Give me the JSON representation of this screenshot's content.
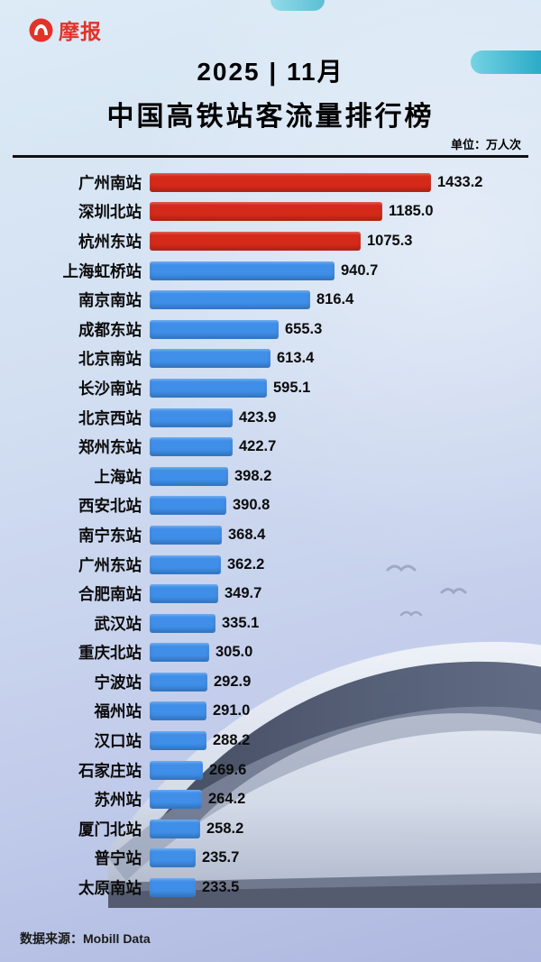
{
  "header": {
    "logo_text": "摩报",
    "date_line": "2025 | 11月",
    "title": "中国高铁站客流量排行榜",
    "unit_label": "单位：万人次"
  },
  "footer": {
    "source": "数据来源：Mobill Data"
  },
  "colors": {
    "bar_top3": "#d52a1a",
    "bar_default": "#3f8fe9",
    "logo_red": "#e23328",
    "swoosh_teal": "#2aa8c4"
  },
  "chart_data": {
    "type": "bar",
    "orientation": "horizontal",
    "title": "中国高铁站客流量排行榜",
    "subtitle": "2025 | 11月",
    "unit": "万人次",
    "highlight_top_n": 3,
    "xlim": [
      0,
      1500
    ],
    "categories": [
      "广州南站",
      "深圳北站",
      "杭州东站",
      "上海虹桥站",
      "南京南站",
      "成都东站",
      "北京南站",
      "长沙南站",
      "北京西站",
      "郑州东站",
      "上海站",
      "西安北站",
      "南宁东站",
      "广州东站",
      "合肥南站",
      "武汉站",
      "重庆北站",
      "宁波站",
      "福州站",
      "汉口站",
      "石家庄站",
      "苏州站",
      "厦门北站",
      "普宁站",
      "太原南站"
    ],
    "values": [
      1433.2,
      1185.0,
      1075.3,
      940.7,
      816.4,
      655.3,
      613.4,
      595.1,
      423.9,
      422.7,
      398.2,
      390.8,
      368.4,
      362.2,
      349.7,
      335.1,
      305.0,
      292.9,
      291.0,
      288.2,
      269.6,
      264.2,
      258.2,
      235.7,
      233.5
    ]
  }
}
